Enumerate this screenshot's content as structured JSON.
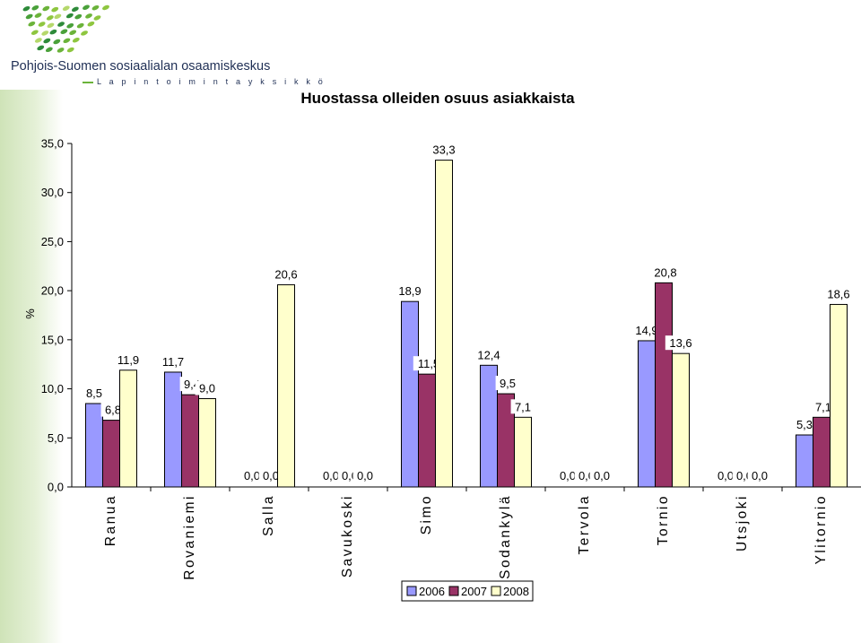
{
  "header": {
    "organization": "Pohjois-Suomen sosiaalialan osaamiskeskus",
    "unit": "L a p i n   t o i m i n t a y k s i k k ö",
    "logo_icon": "green-dots-logo-icon"
  },
  "colors": {
    "series_2006": "#9999ff",
    "series_2007": "#993366",
    "series_2008": "#ffffcc",
    "accent_green": "#6bb33a",
    "logo_navy": "#1f2f55"
  },
  "chart_data": {
    "type": "bar",
    "title": "Huostassa olleiden osuus asiakkaista",
    "xlabel": "",
    "ylabel": "%",
    "ylim": [
      0,
      35
    ],
    "ytick_labels": [
      "0,0",
      "5,0",
      "10,0",
      "15,0",
      "20,0",
      "25,0",
      "30,0",
      "35,0"
    ],
    "categories": [
      "Ranua",
      "Rovaniemi",
      "Salla",
      "Savukoski",
      "Simo",
      "Sodankylä",
      "Tervola",
      "Tornio",
      "Utsjoki",
      "Ylitornio"
    ],
    "series": [
      {
        "name": "2006",
        "values": [
          8.5,
          11.7,
          0.0,
          0.0,
          18.9,
          12.4,
          0.0,
          14.9,
          0.0,
          5.3
        ],
        "labels": [
          "8,5",
          "11,7",
          "0,0",
          "0,0",
          "18,9",
          "12,4",
          "0,0",
          "14,9",
          "0,0",
          "5,3"
        ]
      },
      {
        "name": "2007",
        "values": [
          6.8,
          9.4,
          0.0,
          0.0,
          11.5,
          9.5,
          0.0,
          20.8,
          0.0,
          7.1
        ],
        "labels": [
          "6,8",
          "9,4",
          "0,0",
          "0,0",
          "11,5",
          "9,5",
          "0,0",
          "20,8",
          "0,0",
          "7,1"
        ]
      },
      {
        "name": "2008",
        "values": [
          11.9,
          9.0,
          20.6,
          0.0,
          33.3,
          7.1,
          0.0,
          13.6,
          0.0,
          18.6
        ],
        "labels": [
          "11,9",
          "9,0",
          "20,6",
          "0,0",
          "33,3",
          "7,1",
          "0,0",
          "13,6",
          "0,0",
          "18,6"
        ]
      }
    ],
    "grid": false,
    "legend": "bottom-center"
  }
}
